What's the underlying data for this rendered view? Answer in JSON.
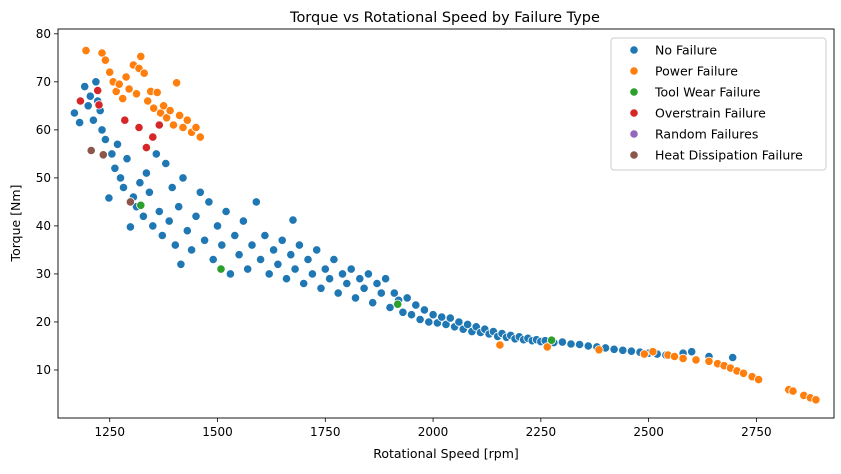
{
  "chart_data": {
    "type": "scatter",
    "title": "Torque vs Rotational Speed by Failure Type",
    "xlabel": "Rotational Speed [rpm]",
    "ylabel": "Torque [Nm]",
    "xlim": [
      1130,
      2930
    ],
    "ylim": [
      0,
      81
    ],
    "x_ticks": [
      1250,
      1500,
      1750,
      2000,
      2250,
      2500,
      2750
    ],
    "y_ticks": [
      10,
      20,
      30,
      40,
      50,
      60,
      70,
      80
    ],
    "grid": false,
    "legend_position": "top-right",
    "series": [
      {
        "name": "No Failure",
        "color": "#1f77b4",
        "points": [
          [
            1168,
            63.5
          ],
          [
            1180,
            61.5
          ],
          [
            1192,
            69
          ],
          [
            1200,
            65
          ],
          [
            1205,
            67
          ],
          [
            1212,
            62
          ],
          [
            1218,
            70
          ],
          [
            1222,
            66
          ],
          [
            1228,
            64
          ],
          [
            1232,
            60
          ],
          [
            1240,
            58
          ],
          [
            1248,
            45.8
          ],
          [
            1255,
            55
          ],
          [
            1262,
            52
          ],
          [
            1268,
            57
          ],
          [
            1275,
            50
          ],
          [
            1282,
            48
          ],
          [
            1290,
            54
          ],
          [
            1298,
            39.8
          ],
          [
            1305,
            46
          ],
          [
            1312,
            44
          ],
          [
            1320,
            49
          ],
          [
            1328,
            42
          ],
          [
            1335,
            51
          ],
          [
            1342,
            47
          ],
          [
            1350,
            40
          ],
          [
            1358,
            55
          ],
          [
            1365,
            43
          ],
          [
            1372,
            38
          ],
          [
            1380,
            53
          ],
          [
            1388,
            41
          ],
          [
            1395,
            48
          ],
          [
            1402,
            36
          ],
          [
            1410,
            44
          ],
          [
            1415,
            32
          ],
          [
            1420,
            50
          ],
          [
            1430,
            39
          ],
          [
            1440,
            35
          ],
          [
            1450,
            42
          ],
          [
            1460,
            47
          ],
          [
            1470,
            37
          ],
          [
            1480,
            45
          ],
          [
            1490,
            33
          ],
          [
            1500,
            40
          ],
          [
            1510,
            36
          ],
          [
            1520,
            43
          ],
          [
            1530,
            30
          ],
          [
            1540,
            38
          ],
          [
            1550,
            34
          ],
          [
            1560,
            41
          ],
          [
            1570,
            31
          ],
          [
            1580,
            36
          ],
          [
            1590,
            45
          ],
          [
            1600,
            33
          ],
          [
            1610,
            38
          ],
          [
            1620,
            30
          ],
          [
            1630,
            35
          ],
          [
            1640,
            32
          ],
          [
            1650,
            37
          ],
          [
            1660,
            29
          ],
          [
            1670,
            34
          ],
          [
            1675,
            41.2
          ],
          [
            1680,
            31
          ],
          [
            1690,
            36
          ],
          [
            1700,
            28
          ],
          [
            1710,
            33
          ],
          [
            1720,
            30
          ],
          [
            1730,
            35
          ],
          [
            1740,
            27
          ],
          [
            1750,
            31
          ],
          [
            1760,
            29
          ],
          [
            1770,
            33
          ],
          [
            1780,
            26
          ],
          [
            1790,
            30
          ],
          [
            1800,
            28
          ],
          [
            1810,
            31
          ],
          [
            1820,
            25
          ],
          [
            1830,
            29
          ],
          [
            1840,
            27
          ],
          [
            1850,
            30
          ],
          [
            1860,
            24
          ],
          [
            1870,
            28
          ],
          [
            1880,
            26
          ],
          [
            1890,
            29
          ],
          [
            1900,
            23
          ],
          [
            1910,
            26
          ],
          [
            1920,
            24.5
          ],
          [
            1930,
            22
          ],
          [
            1940,
            25
          ],
          [
            1950,
            21.5
          ],
          [
            1960,
            23.5
          ],
          [
            1970,
            20.5
          ],
          [
            1980,
            22.5
          ],
          [
            1990,
            20
          ],
          [
            2000,
            21.5
          ],
          [
            2010,
            19.8
          ],
          [
            2020,
            21
          ],
          [
            2030,
            19.5
          ],
          [
            2040,
            20.8
          ],
          [
            2050,
            19
          ],
          [
            2060,
            20
          ],
          [
            2070,
            18.5
          ],
          [
            2080,
            19.5
          ],
          [
            2090,
            18
          ],
          [
            2100,
            19
          ],
          [
            2110,
            17.8
          ],
          [
            2120,
            18.5
          ],
          [
            2130,
            17.5
          ],
          [
            2140,
            18
          ],
          [
            2150,
            17
          ],
          [
            2160,
            17.6
          ],
          [
            2170,
            16.8
          ],
          [
            2180,
            17.2
          ],
          [
            2190,
            16.5
          ],
          [
            2200,
            16.9
          ],
          [
            2210,
            16.3
          ],
          [
            2220,
            16.6
          ],
          [
            2230,
            16.1
          ],
          [
            2240,
            16.3
          ],
          [
            2250,
            15.9
          ],
          [
            2260,
            16.1
          ],
          [
            2280,
            15.7
          ],
          [
            2300,
            15.8
          ],
          [
            2320,
            15.4
          ],
          [
            2340,
            15.3
          ],
          [
            2360,
            15
          ],
          [
            2380,
            14.8
          ],
          [
            2400,
            14.6
          ],
          [
            2420,
            14.3
          ],
          [
            2440,
            14.1
          ],
          [
            2460,
            13.9
          ],
          [
            2480,
            13.7
          ],
          [
            2500,
            13.5
          ],
          [
            2520,
            13.3
          ],
          [
            2540,
            13.1
          ],
          [
            2560,
            12.9
          ],
          [
            2580,
            13.5
          ],
          [
            2600,
            13.8
          ],
          [
            2640,
            12.8
          ],
          [
            2695,
            12.6
          ]
        ]
      },
      {
        "name": "Power Failure",
        "color": "#ff7f0e",
        "points": [
          [
            1195,
            76.5
          ],
          [
            1232,
            76
          ],
          [
            1240,
            74.5
          ],
          [
            1250,
            72
          ],
          [
            1258,
            70
          ],
          [
            1265,
            68
          ],
          [
            1272,
            69.5
          ],
          [
            1280,
            66.5
          ],
          [
            1288,
            71
          ],
          [
            1295,
            68.5
          ],
          [
            1305,
            73.5
          ],
          [
            1312,
            67.5
          ],
          [
            1318,
            72.8
          ],
          [
            1322,
            75.3
          ],
          [
            1330,
            71.8
          ],
          [
            1338,
            66
          ],
          [
            1345,
            68
          ],
          [
            1352,
            64.5
          ],
          [
            1360,
            67.8
          ],
          [
            1368,
            63.5
          ],
          [
            1375,
            65
          ],
          [
            1382,
            62.5
          ],
          [
            1390,
            64
          ],
          [
            1398,
            61
          ],
          [
            1405,
            69.8
          ],
          [
            1412,
            63
          ],
          [
            1420,
            60.5
          ],
          [
            1430,
            62
          ],
          [
            1440,
            59.5
          ],
          [
            1450,
            60.5
          ],
          [
            1460,
            58.5
          ],
          [
            2155,
            15.2
          ],
          [
            2265,
            14.8
          ],
          [
            2385,
            14.2
          ],
          [
            2490,
            13.3
          ],
          [
            2510,
            13.8
          ],
          [
            2545,
            13.1
          ],
          [
            2560,
            12.8
          ],
          [
            2580,
            12.4
          ],
          [
            2610,
            12.1
          ],
          [
            2640,
            11.8
          ],
          [
            2660,
            11.3
          ],
          [
            2675,
            10.9
          ],
          [
            2690,
            10.4
          ],
          [
            2705,
            9.8
          ],
          [
            2720,
            9.3
          ],
          [
            2740,
            8.6
          ],
          [
            2755,
            8
          ],
          [
            2825,
            5.9
          ],
          [
            2835,
            5.6
          ],
          [
            2860,
            4.7
          ],
          [
            2875,
            4.2
          ],
          [
            2888,
            3.8
          ]
        ]
      },
      {
        "name": "Tool Wear Failure",
        "color": "#2ca02c",
        "points": [
          [
            1322,
            44.3
          ],
          [
            1508,
            31
          ],
          [
            1918,
            23.7
          ],
          [
            2275,
            16.2
          ]
        ]
      },
      {
        "name": "Overstrain Failure",
        "color": "#d62728",
        "points": [
          [
            1182,
            66
          ],
          [
            1222,
            68.2
          ],
          [
            1225,
            65.2
          ],
          [
            1285,
            62
          ],
          [
            1318,
            60.5
          ],
          [
            1335,
            56.3
          ],
          [
            1350,
            58.5
          ],
          [
            1365,
            61
          ]
        ]
      },
      {
        "name": "Random Failures",
        "color": "#9467bd",
        "points": []
      },
      {
        "name": "Heat Dissipation Failure",
        "color": "#8c564b",
        "points": [
          [
            1207,
            55.7
          ],
          [
            1235,
            54.8
          ],
          [
            1298,
            45
          ]
        ]
      }
    ]
  }
}
